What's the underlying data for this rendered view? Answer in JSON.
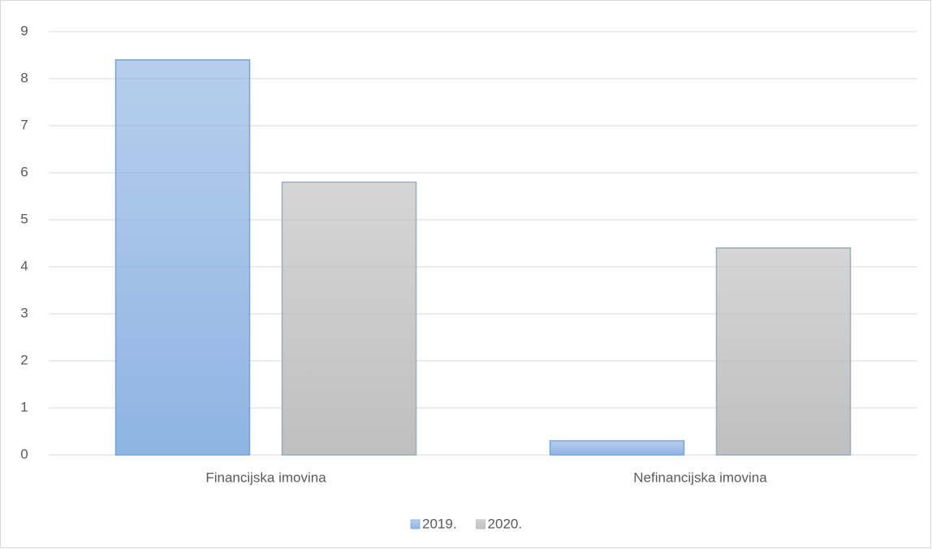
{
  "chart_data": {
    "type": "bar",
    "categories": [
      "Financijska imovina",
      "Nefinancijska imovina"
    ],
    "series": [
      {
        "name": "2019.",
        "color": "#8fb4e3",
        "values": [
          8.4,
          0.3
        ]
      },
      {
        "name": "2020.",
        "color": "#bfbfbf",
        "values": [
          5.8,
          4.4
        ]
      }
    ],
    "ylim": [
      0,
      9
    ],
    "yticks": [
      0,
      1,
      2,
      3,
      4,
      5,
      6,
      7,
      8,
      9
    ],
    "grid": true,
    "legend": "bottom"
  }
}
